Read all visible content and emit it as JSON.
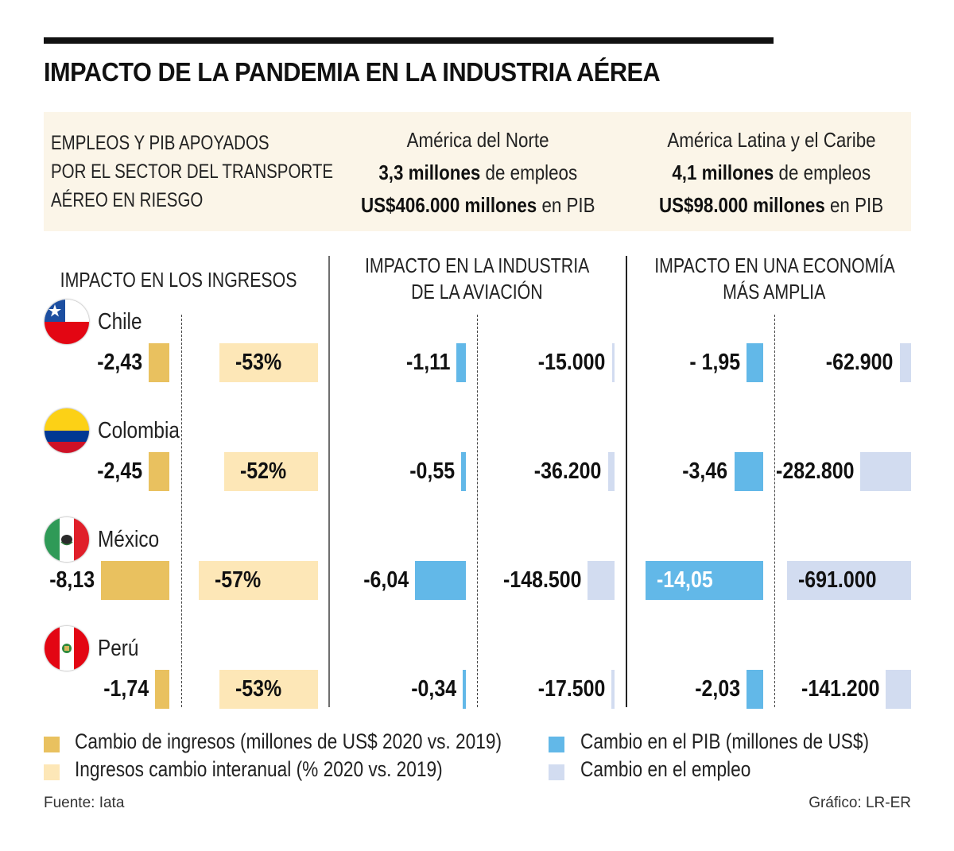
{
  "header": {
    "title": "IMPACTO DE LA PANDEMIA EN LA INDUSTRIA AÉREA"
  },
  "info": {
    "left_lines": [
      "EMPLEOS Y PIB APOYADOS",
      "POR EL SECTOR DEL TRANSPORTE",
      "AÉREO EN RIESGO"
    ],
    "north_america": {
      "region": "América del Norte",
      "jobs_bold": "3,3 millones",
      "jobs_rest": " de empleos",
      "gdp_bold": "US$406.000 millones",
      "gdp_rest": " en PIB"
    },
    "latam": {
      "region": "América Latina y el Caribe",
      "jobs_bold": "4,1 millones",
      "jobs_rest": " de empleos",
      "gdp_bold": "US$98.000 millones",
      "gdp_rest": " en PIB"
    }
  },
  "sections": {
    "revenue": [
      "IMPACTO EN LOS INGRESOS"
    ],
    "aviation": [
      "IMPACTO EN LA INDUSTRIA",
      "DE LA AVIACIÓN"
    ],
    "economy": [
      "IMPACTO EN UNA ECONOMÍA",
      "MÁS AMPLIA"
    ]
  },
  "colors": {
    "revenue_change": "#e9c15f",
    "revenue_pct": "#fde7b7",
    "gdp_change": "#62b8e8",
    "employment_change": "#d2dcf0"
  },
  "legend": {
    "revenue_change": "Cambio de ingresos (millones de US$ 2020 vs. 2019)",
    "revenue_pct": "Ingresos cambio interanual (% 2020 vs. 2019)",
    "gdp_change": "Cambio en el PIB  (millones de US$)",
    "employment_change": "Cambio en el empleo"
  },
  "footer": {
    "source": "Fuente: Iata",
    "credit": "Gráfico: LR-ER"
  },
  "chart_data": {
    "type": "bar",
    "title": "IMPACTO DE LA PANDEMIA EN LA INDUSTRIA AÉREA",
    "categories": [
      "Chile",
      "Colombia",
      "México",
      "Perú"
    ],
    "series": [
      {
        "name": "Cambio de ingresos (millones de US$ 2020 vs. 2019)",
        "group": "IMPACTO EN LOS INGRESOS",
        "values": [
          -2.43,
          -2.45,
          -8.13,
          -1.74
        ],
        "labels": [
          "-2,43",
          "-2,45",
          "-8,13",
          "-1,74"
        ]
      },
      {
        "name": "Ingresos cambio interanual (% 2020 vs. 2019)",
        "group": "IMPACTO EN LOS INGRESOS",
        "values": [
          -53,
          -52,
          -57,
          -53
        ],
        "labels": [
          "-53%",
          "-52%",
          "-57%",
          "-53%"
        ]
      },
      {
        "name": "Cambio en el PIB (millones de US$)",
        "group": "IMPACTO EN LA INDUSTRIA DE LA AVIACIÓN",
        "values": [
          -1.11,
          -0.55,
          -6.04,
          -0.34
        ],
        "labels": [
          "-1,11",
          "-0,55",
          "-6,04",
          "-0,34"
        ]
      },
      {
        "name": "Cambio en el empleo",
        "group": "IMPACTO EN LA INDUSTRIA DE LA AVIACIÓN",
        "values": [
          -15000,
          -36200,
          -148500,
          -17500
        ],
        "labels": [
          "-15.000",
          "-36.200",
          "-148.500",
          "-17.500"
        ]
      },
      {
        "name": "Cambio en el PIB (millones de US$)",
        "group": "IMPACTO EN UNA ECONOMÍA MÁS AMPLIA",
        "values": [
          -1.95,
          -3.46,
          -14.05,
          -2.03
        ],
        "labels": [
          "- 1,95",
          "-3,46",
          "-14,05",
          "-2,03"
        ]
      },
      {
        "name": "Cambio en el empleo",
        "group": "IMPACTO EN UNA ECONOMÍA MÁS AMPLIA",
        "values": [
          -62900,
          -282800,
          -691000,
          -141200
        ],
        "labels": [
          "-62.900",
          "-282.800",
          "-691.000",
          "-141.200"
        ]
      }
    ]
  }
}
